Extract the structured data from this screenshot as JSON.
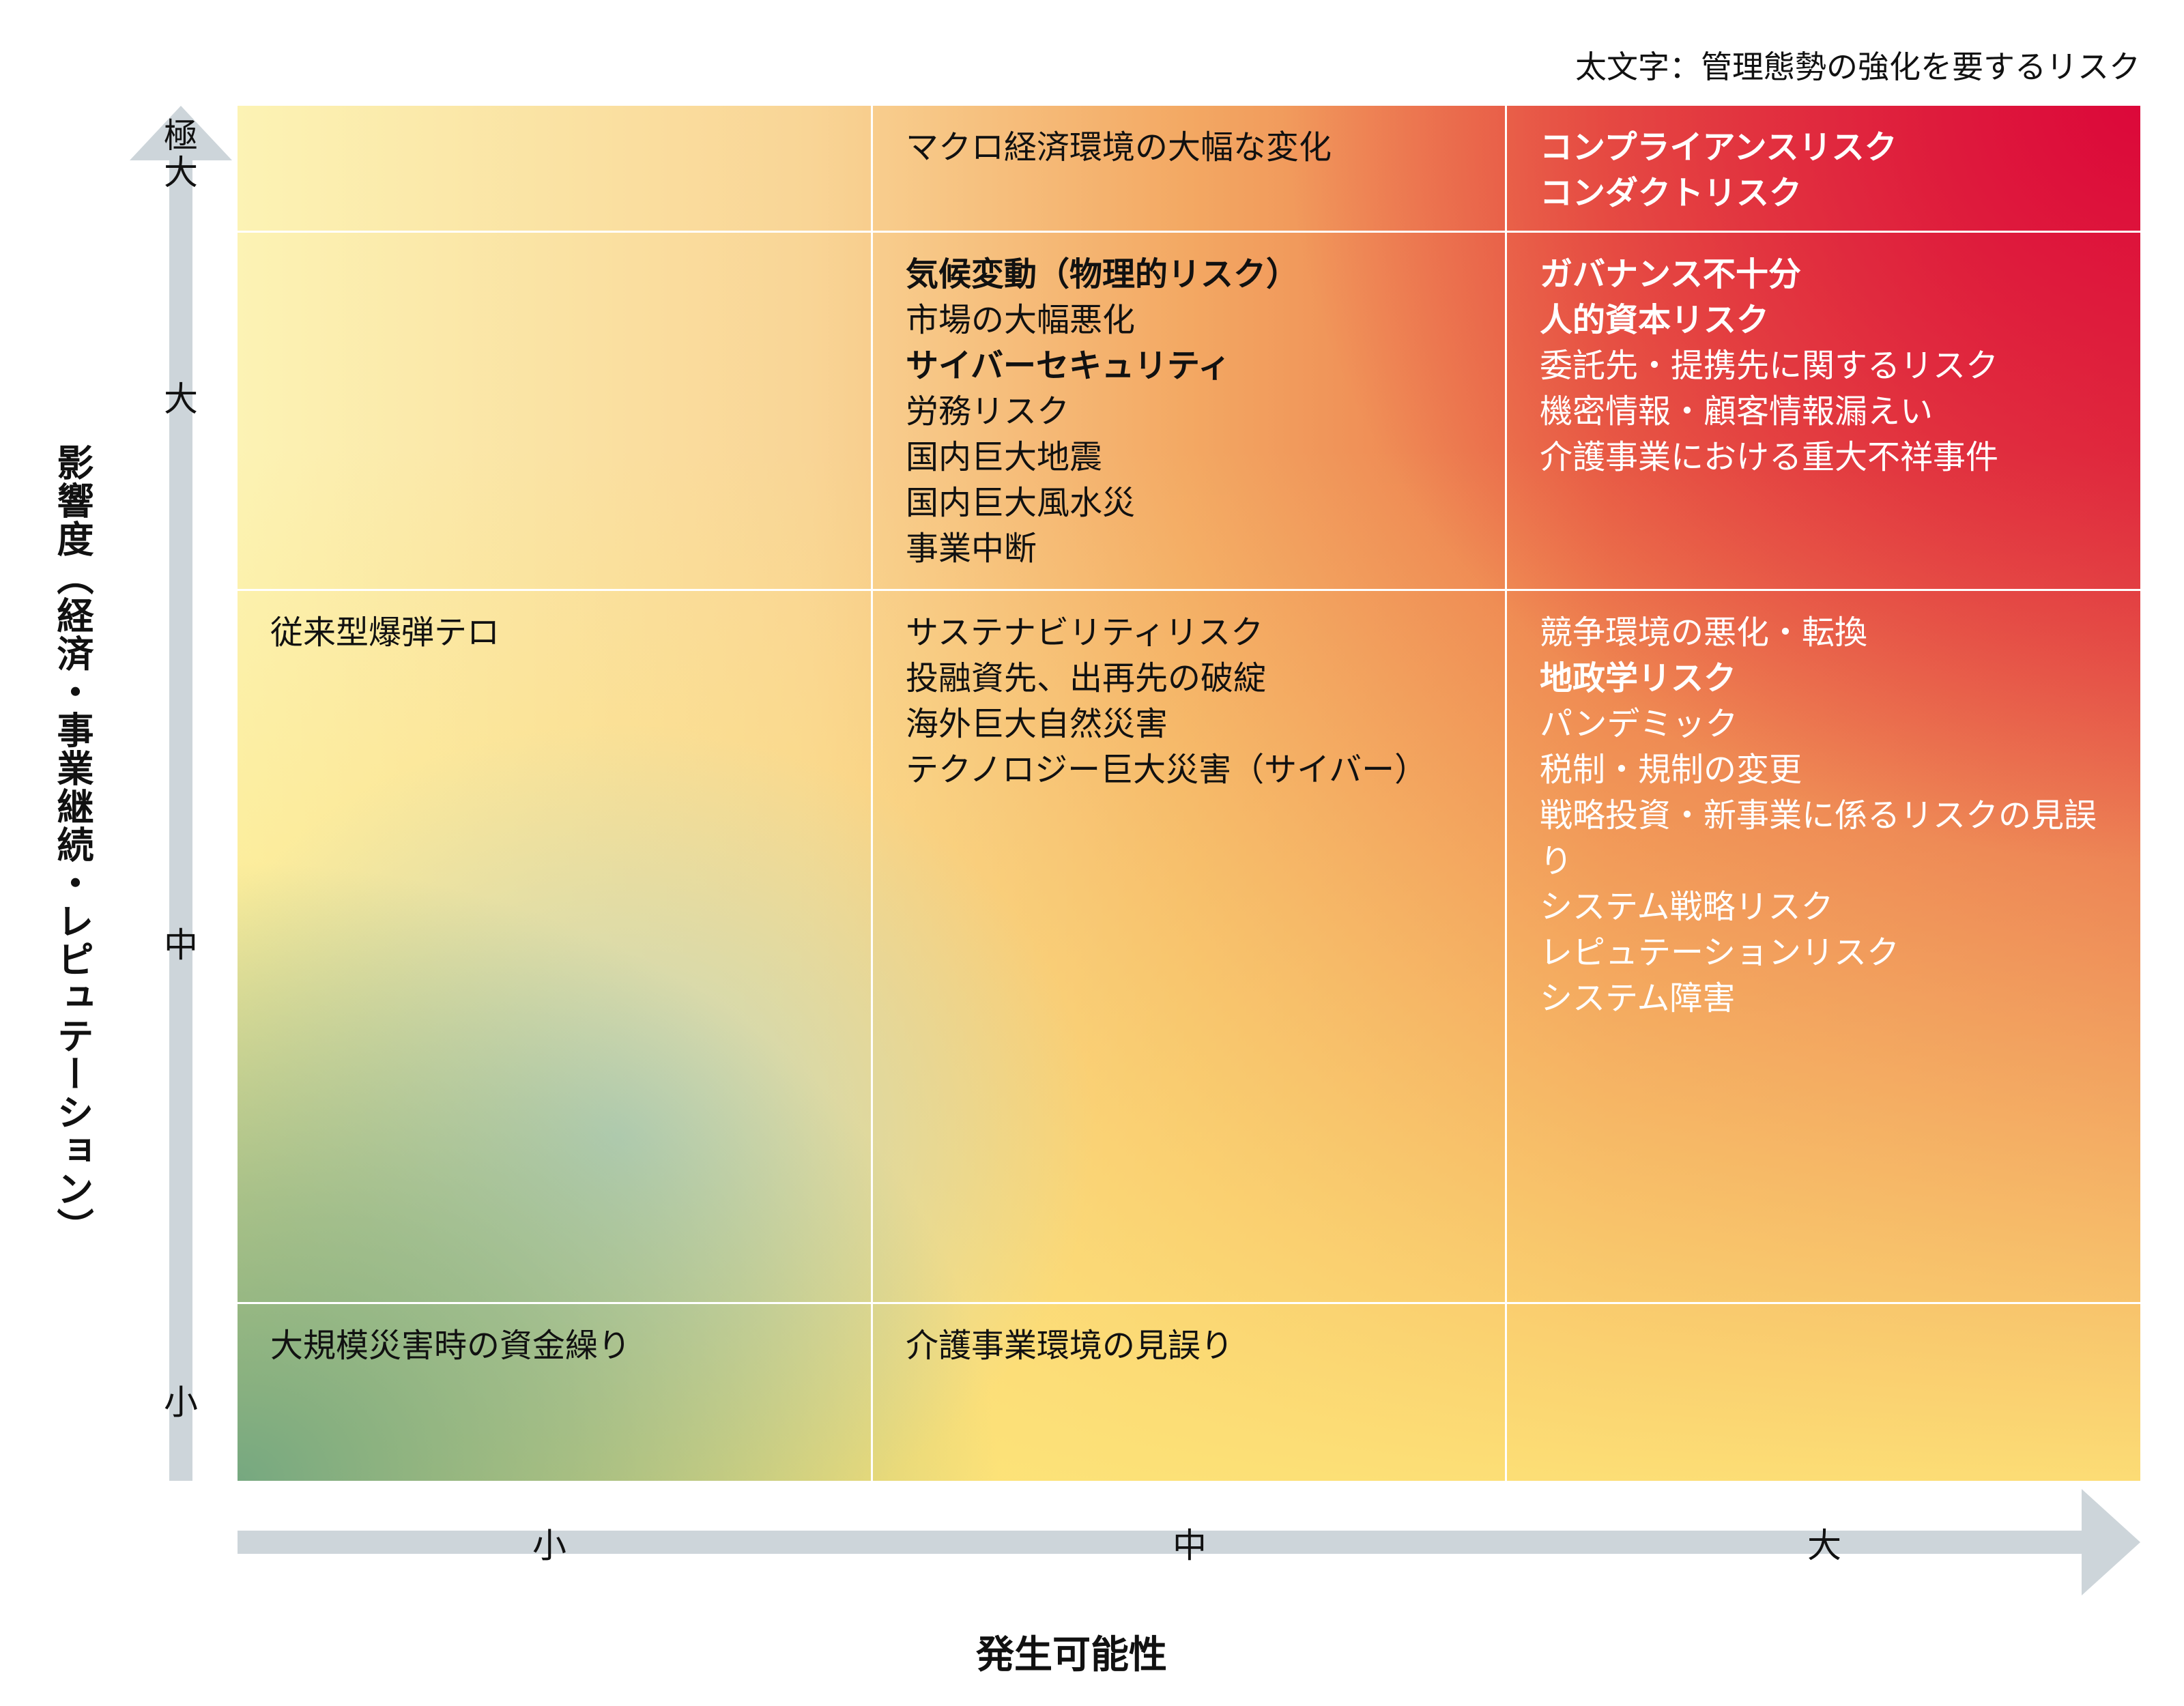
{
  "legend": "太文字：管理態勢の強化を要するリスク",
  "y_axis": {
    "title": "影響度（経済・事業継続・レピュテーション）",
    "ticks": [
      "極大",
      "大",
      "中",
      "小"
    ]
  },
  "x_axis": {
    "title": "発生可能性",
    "ticks": [
      "小",
      "中",
      "大"
    ]
  },
  "colors": {
    "high": "#dc083a",
    "mid": "#ef8a50",
    "low_yellow": "#fde478",
    "low_green": "#76a880",
    "axis": "#cdd5da"
  },
  "cells": {
    "r0c0": [],
    "r0c1": [
      {
        "text": "マクロ経済環境の大幅な変化",
        "bold": false
      }
    ],
    "r0c2": [
      {
        "text": "コンプライアンスリスク",
        "bold": true
      },
      {
        "text": "コンダクトリスク",
        "bold": true
      }
    ],
    "r1c0": [],
    "r1c1": [
      {
        "text": "気候変動（物理的リスク）",
        "bold": true
      },
      {
        "text": "市場の大幅悪化",
        "bold": false
      },
      {
        "text": "サイバーセキュリティ",
        "bold": true
      },
      {
        "text": "労務リスク",
        "bold": false
      },
      {
        "text": "国内巨大地震",
        "bold": false
      },
      {
        "text": "国内巨大風水災",
        "bold": false
      },
      {
        "text": "事業中断",
        "bold": false
      }
    ],
    "r1c2": [
      {
        "text": "ガバナンス不十分",
        "bold": true
      },
      {
        "text": "人的資本リスク",
        "bold": true
      },
      {
        "text": "委託先・提携先に関するリスク",
        "bold": false
      },
      {
        "text": "機密情報・顧客情報漏えい",
        "bold": false
      },
      {
        "text": "介護事業における重大不祥事件",
        "bold": false
      }
    ],
    "r2c0": [
      {
        "text": "従来型爆弾テロ",
        "bold": false
      }
    ],
    "r2c1": [
      {
        "text": "サステナビリティリスク",
        "bold": false
      },
      {
        "text": "投融資先、出再先の破綻",
        "bold": false
      },
      {
        "text": "海外巨大自然災害",
        "bold": false
      },
      {
        "text": "テクノロジー巨大災害（サイバー）",
        "bold": false
      }
    ],
    "r2c2": [
      {
        "text": "競争環境の悪化・転換",
        "bold": false
      },
      {
        "text": "地政学リスク",
        "bold": true
      },
      {
        "text": "パンデミック",
        "bold": false
      },
      {
        "text": "税制・規制の変更",
        "bold": false
      },
      {
        "text": "戦略投資・新事業に係るリスクの見誤り",
        "bold": false
      },
      {
        "text": "システム戦略リスク",
        "bold": false
      },
      {
        "text": "レピュテーションリスク",
        "bold": false
      },
      {
        "text": "システム障害",
        "bold": false
      }
    ],
    "r3c0": [
      {
        "text": "大規模災害時の資金繰り",
        "bold": false
      }
    ],
    "r3c1": [
      {
        "text": "介護事業環境の見誤り",
        "bold": false
      }
    ],
    "r3c2": []
  }
}
